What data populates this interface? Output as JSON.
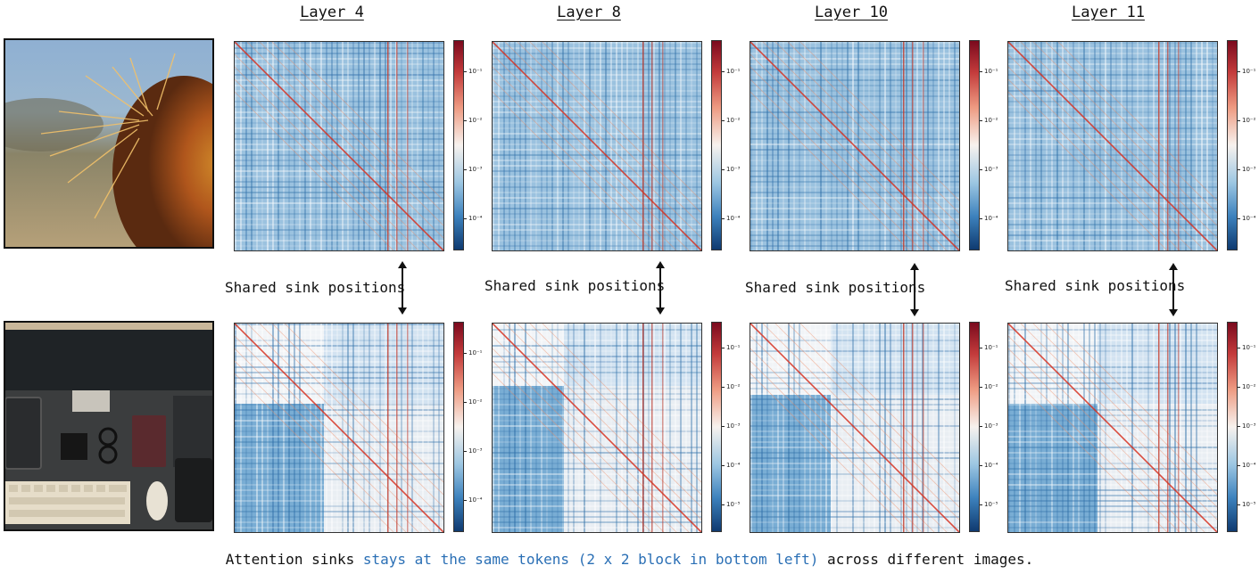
{
  "layers": [
    {
      "title": "Layer 4"
    },
    {
      "title": "Layer 8"
    },
    {
      "title": "Layer 10"
    },
    {
      "title": "Layer 11"
    }
  ],
  "images": [
    {
      "subject": "cactus-photo"
    },
    {
      "subject": "desk-photo"
    }
  ],
  "colorbars": [
    [
      "10⁻¹",
      "10⁻²",
      "10⁻³",
      "10⁻⁴"
    ],
    [
      "10⁻¹",
      "10⁻²",
      "10⁻³",
      "10⁻⁴"
    ],
    [
      "10⁻¹",
      "10⁻²",
      "10⁻³",
      "10⁻⁴"
    ],
    [
      "10⁻¹",
      "10⁻²",
      "10⁻³",
      "10⁻⁴"
    ],
    [
      "10⁻¹",
      "10⁻²",
      "10⁻³",
      "10⁻⁴"
    ],
    [
      "10⁻¹",
      "10⁻²",
      "10⁻³",
      "10⁻⁴",
      "10⁻⁵"
    ],
    [
      "10⁻¹",
      "10⁻²",
      "10⁻³",
      "10⁻⁴",
      "10⁻⁵"
    ],
    [
      "10⁻¹",
      "10⁻²",
      "10⁻³",
      "10⁻⁴",
      "10⁻⁵"
    ]
  ],
  "sink_label": "Shared sink positions",
  "caption": {
    "prefix": "Attention sinks ",
    "highlight": "stays at the same tokens (2 x 2 block in bottom left)",
    "suffix": " across different images."
  },
  "colors": {
    "highlight": "#2a6fb5",
    "red": "#d7301f",
    "blue": "#2166ac"
  }
}
